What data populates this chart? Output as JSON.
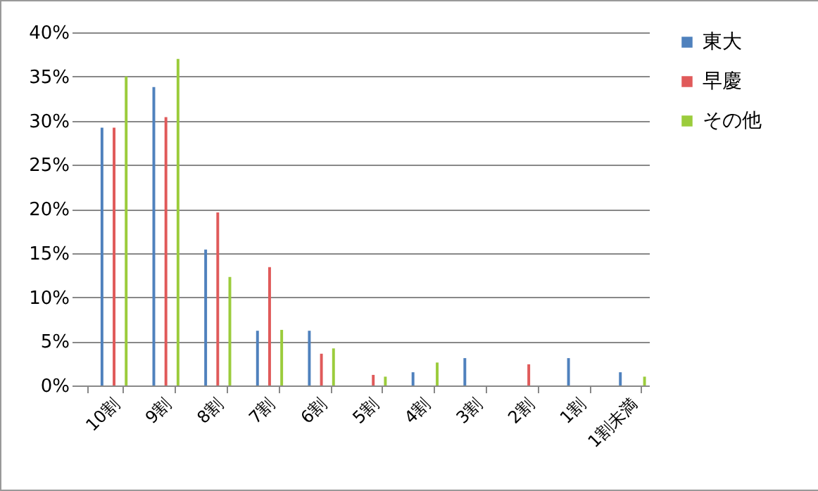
{
  "chart_data": {
    "type": "bar",
    "categories": [
      "10割",
      "9割",
      "8割",
      "7割",
      "6割",
      "5割",
      "4割",
      "3割",
      "2割",
      "1割",
      "1割未満"
    ],
    "series": [
      {
        "name": "東大",
        "color": "#4f81bd",
        "values": [
          29.2,
          33.8,
          15.4,
          6.2,
          6.2,
          0,
          1.5,
          3.1,
          0,
          3.1,
          1.5
        ]
      },
      {
        "name": "早慶",
        "color": "#e05a5a",
        "values": [
          29.2,
          30.4,
          19.6,
          13.4,
          3.6,
          1.2,
          0,
          0,
          2.4,
          0,
          0
        ]
      },
      {
        "name": "その他",
        "color": "#9bcc3c",
        "values": [
          35,
          37,
          12.3,
          6.3,
          4.2,
          1.0,
          2.6,
          0,
          0,
          0,
          1.0
        ]
      }
    ],
    "ylim": [
      0,
      40
    ],
    "yticks": [
      {
        "value": 0,
        "label": "0%"
      },
      {
        "value": 5,
        "label": "5%"
      },
      {
        "value": 10,
        "label": "10%"
      },
      {
        "value": 15,
        "label": "15%"
      },
      {
        "value": 20,
        "label": "20%"
      },
      {
        "value": 25,
        "label": "25%"
      },
      {
        "value": 30,
        "label": "30%"
      },
      {
        "value": 35,
        "label": "35%"
      },
      {
        "value": 40,
        "label": "40%"
      }
    ],
    "grid": "y",
    "legend": "right"
  }
}
